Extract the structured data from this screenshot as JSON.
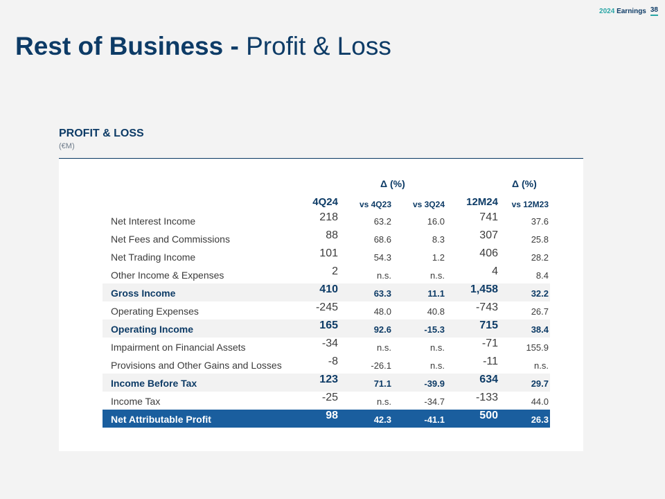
{
  "header": {
    "year": "2024",
    "earnings_label": "Earnings",
    "page_number": "38"
  },
  "title": {
    "bold": "Rest of Business -",
    "light": "Profit & Loss"
  },
  "section": {
    "label": "PROFIT & LOSS",
    "unit": "(€M)"
  },
  "columns": {
    "delta1": "Δ (%)",
    "delta2": "Δ (%)",
    "q": "4Q24",
    "vs_4q23": "vs 4Q23",
    "vs_3q24": "vs 3Q24",
    "ytd": "12M24",
    "vs_12m23": "vs 12M23"
  },
  "rows": [
    {
      "label": "Net Interest Income",
      "q4": "218",
      "vs4q23": "63.2",
      "vs3q24": "16.0",
      "m12": "741",
      "vs12m23": "37.6",
      "style": "normal"
    },
    {
      "label": "Net Fees and Commissions",
      "q4": "88",
      "vs4q23": "68.6",
      "vs3q24": "8.3",
      "m12": "307",
      "vs12m23": "25.8",
      "style": "normal"
    },
    {
      "label": "Net Trading Income",
      "q4": "101",
      "vs4q23": "54.3",
      "vs3q24": "1.2",
      "m12": "406",
      "vs12m23": "28.2",
      "style": "normal"
    },
    {
      "label": "Other Income & Expenses",
      "q4": "2",
      "vs4q23": "n.s.",
      "vs3q24": "n.s.",
      "m12": "4",
      "vs12m23": "8.4",
      "style": "normal"
    },
    {
      "label": "Gross Income",
      "q4": "410",
      "vs4q23": "63.3",
      "vs3q24": "11.1",
      "m12": "1,458",
      "vs12m23": "32.2",
      "style": "hl"
    },
    {
      "label": "Operating Expenses",
      "q4": "-245",
      "vs4q23": "48.0",
      "vs3q24": "40.8",
      "m12": "-743",
      "vs12m23": "26.7",
      "style": "normal"
    },
    {
      "label": "Operating Income",
      "q4": "165",
      "vs4q23": "92.6",
      "vs3q24": "-15.3",
      "m12": "715",
      "vs12m23": "38.4",
      "style": "hl"
    },
    {
      "label": "Impairment on Financial Assets",
      "q4": "-34",
      "vs4q23": "n.s.",
      "vs3q24": "n.s.",
      "m12": "-71",
      "vs12m23": "155.9",
      "style": "normal"
    },
    {
      "label": "Provisions and Other Gains and Losses",
      "q4": "-8",
      "vs4q23": "-26.1",
      "vs3q24": "n.s.",
      "m12": "-11",
      "vs12m23": "n.s.",
      "style": "normal"
    },
    {
      "label": "Income Before Tax",
      "q4": "123",
      "vs4q23": "71.1",
      "vs3q24": "-39.9",
      "m12": "634",
      "vs12m23": "29.7",
      "style": "hl"
    },
    {
      "label": "Income Tax",
      "q4": "-25",
      "vs4q23": "n.s.",
      "vs3q24": "-34.7",
      "m12": "-133",
      "vs12m23": "44.0",
      "style": "normal"
    },
    {
      "label": "Net Attributable Profit",
      "q4": "98",
      "vs4q23": "42.3",
      "vs3q24": "-41.1",
      "m12": "500",
      "vs12m23": "26.3",
      "style": "final"
    }
  ]
}
